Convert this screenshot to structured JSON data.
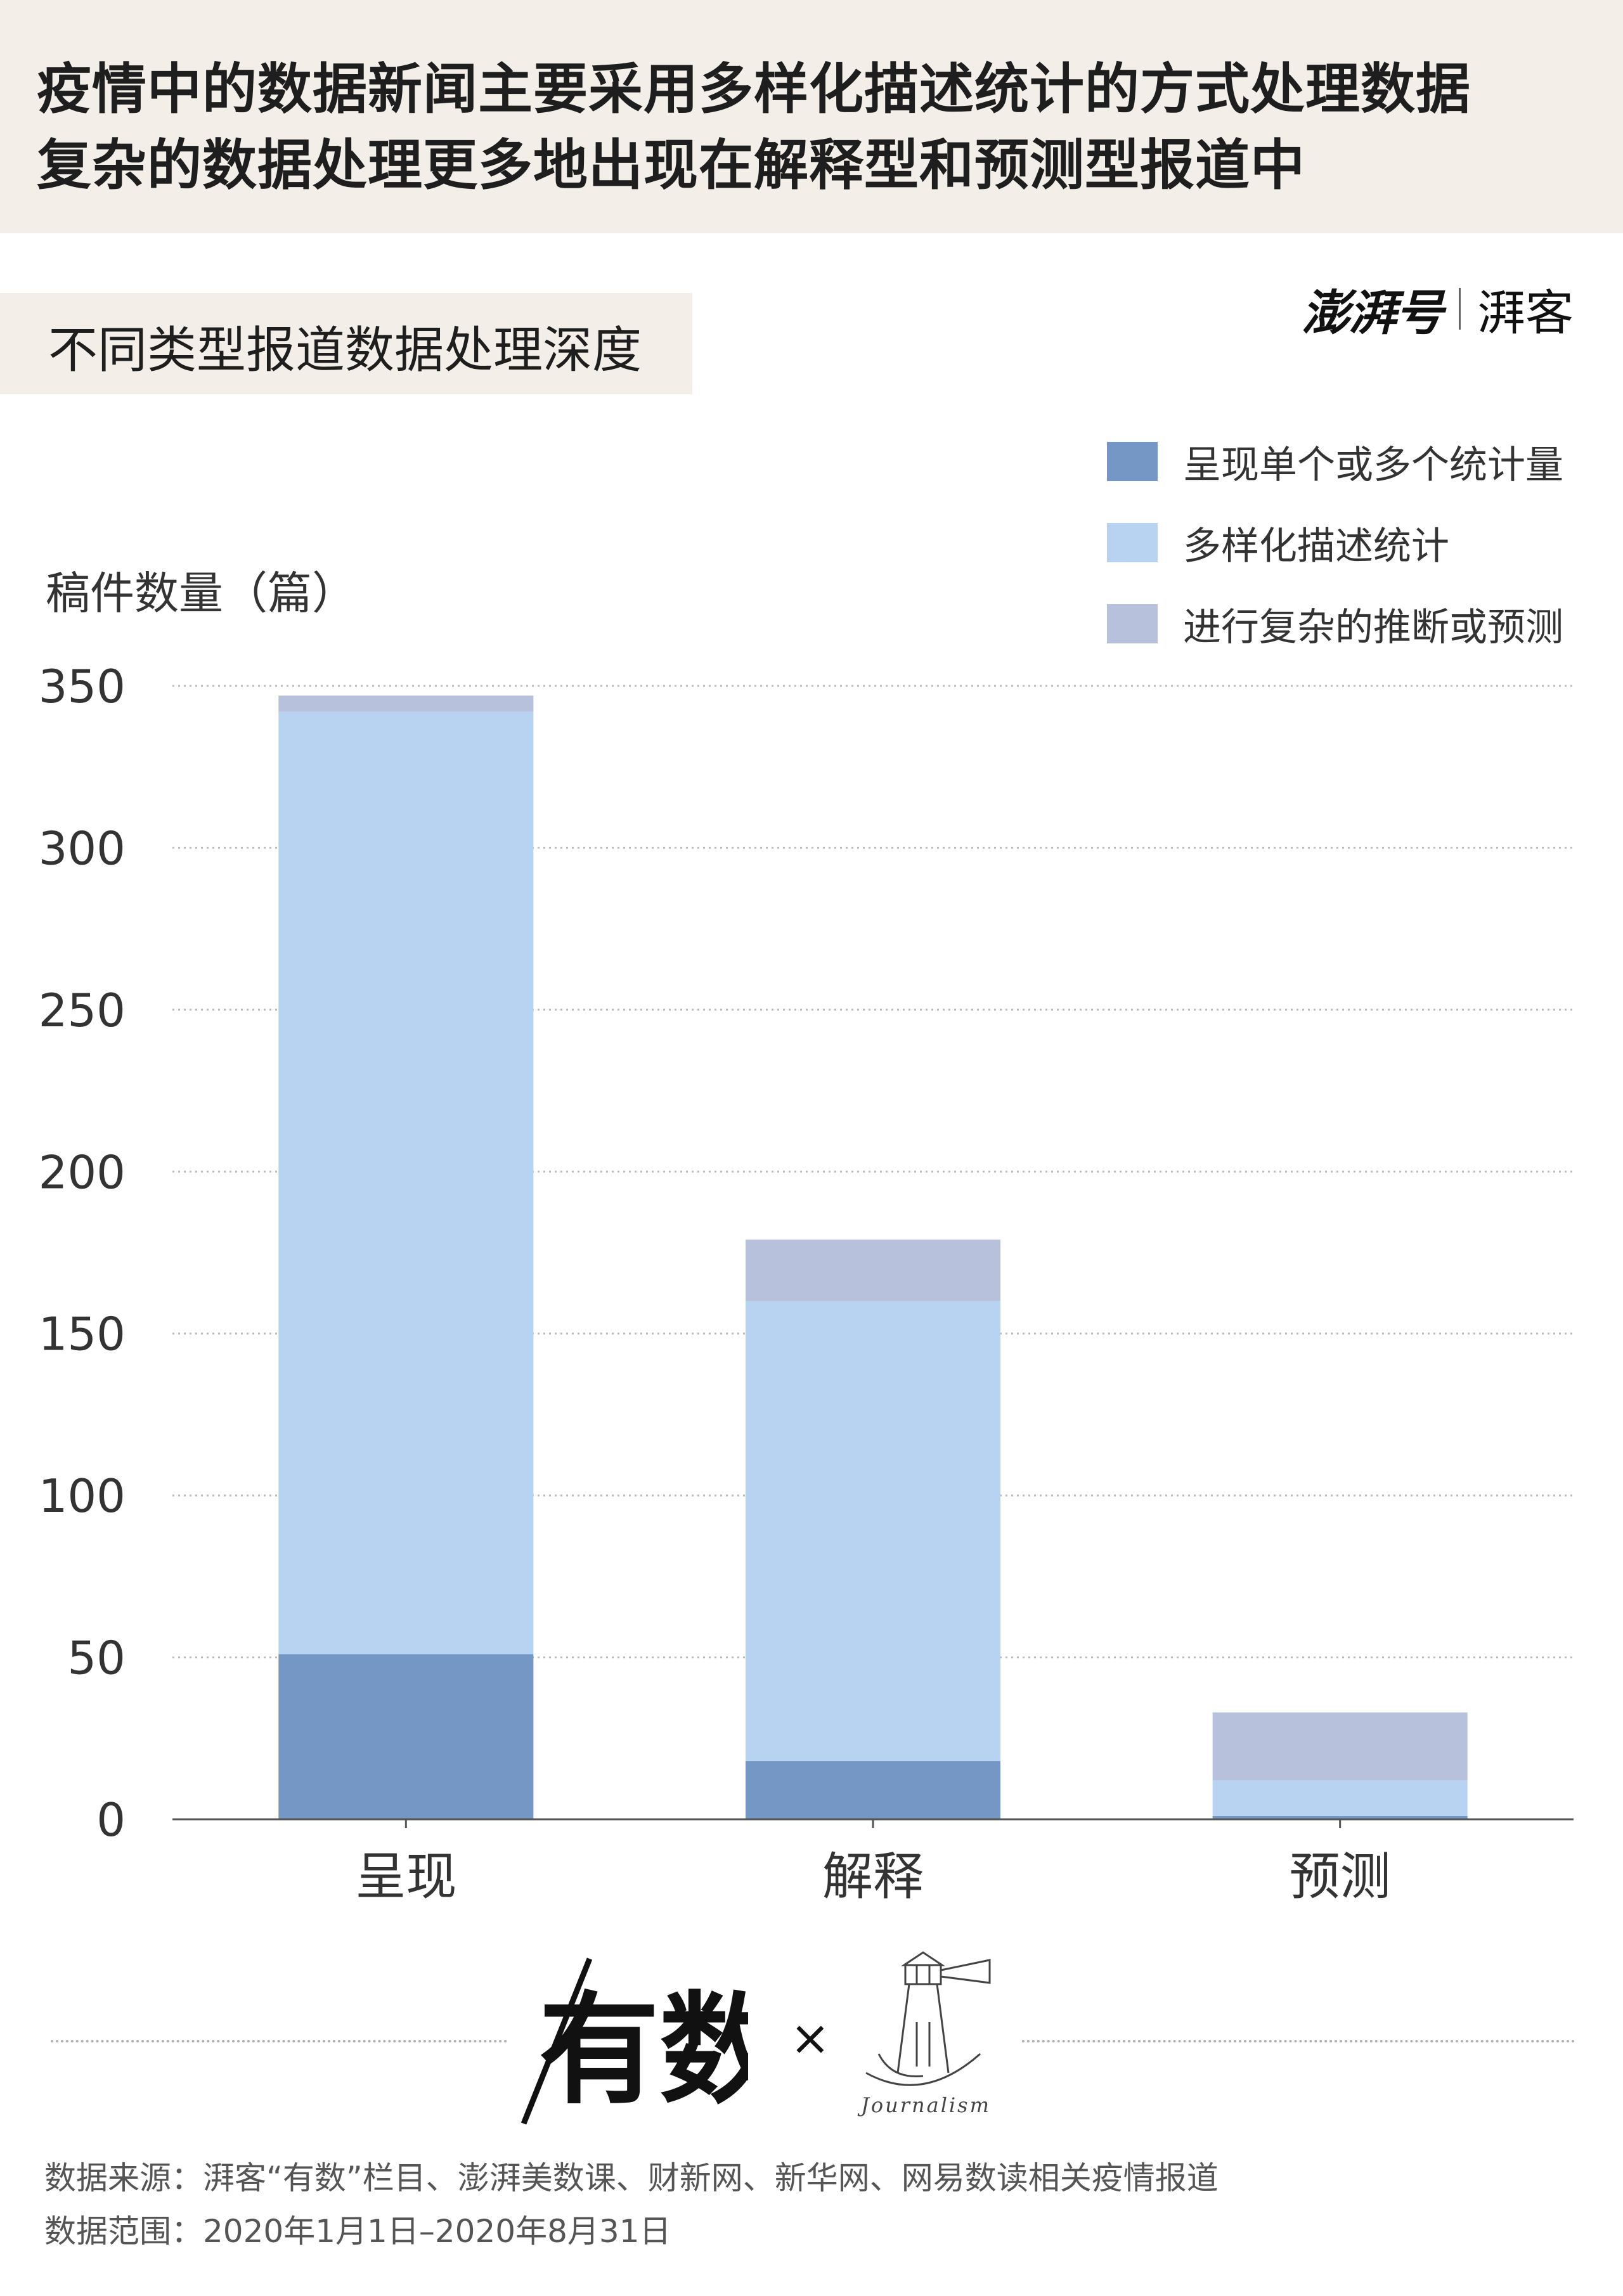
{
  "header": {
    "line1": "疫情中的数据新闻主要采用多样化描述统计的方式处理数据",
    "line2": "复杂的数据处理更多地出现在解释型和预测型报道中"
  },
  "subtitle": "不同类型报道数据处理深度",
  "brand": {
    "left": "澎湃号",
    "right": "湃客"
  },
  "logos": {
    "youshu": "有数",
    "cross": "×",
    "journalism": "Journalism"
  },
  "chart_data": {
    "type": "bar",
    "stacked": true,
    "ylabel": "稿件数量（篇）",
    "xlabel": "",
    "ylim": [
      0,
      350
    ],
    "yticks": [
      0,
      50,
      100,
      150,
      200,
      250,
      300,
      350
    ],
    "grid": true,
    "legend_position": "top-right",
    "categories": [
      "呈现",
      "解释",
      "预测"
    ],
    "series": [
      {
        "name": "呈现单个或多个统计量",
        "color": "#7497c5",
        "values": [
          51,
          18,
          1
        ]
      },
      {
        "name": "多样化描述统计",
        "color": "#b8d3f1",
        "values": [
          291,
          142,
          11
        ]
      },
      {
        "name": "进行复杂的推断或预测",
        "color": "#b7c1dc",
        "values": [
          5,
          19,
          21
        ]
      }
    ]
  },
  "footer": {
    "source": "数据来源：湃客“有数”栏目、澎湃美数课、财新网、新华网、网易数读相关疫情报道",
    "range": "数据范围：2020年1月1日–2020年8月31日"
  }
}
